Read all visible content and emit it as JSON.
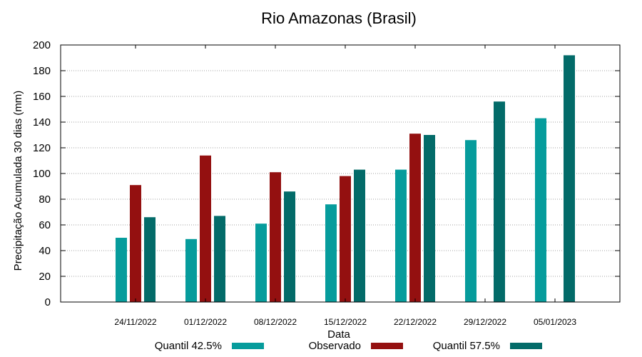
{
  "chart_data": {
    "type": "bar",
    "title": "Rio Amazonas (Brasil)",
    "xlabel": "Data",
    "ylabel": "Precipitação Acumulada 30 dias (mm)",
    "ylim": [
      0,
      200
    ],
    "yticks": [
      0,
      20,
      40,
      60,
      80,
      100,
      120,
      140,
      160,
      180,
      200
    ],
    "grid": true,
    "legend_position": "bottom",
    "categories": [
      "24/11/2022",
      "01/12/2022",
      "08/12/2022",
      "15/12/2022",
      "22/12/2022",
      "29/12/2022",
      "05/01/2023"
    ],
    "series": [
      {
        "name": "Quantil 42.5%",
        "color": "#069c9c",
        "values": [
          50,
          49,
          61,
          76,
          103,
          126,
          143
        ]
      },
      {
        "name": "Observado",
        "color": "#941010",
        "values": [
          91,
          114,
          101,
          98,
          131,
          null,
          null
        ]
      },
      {
        "name": "Quantil 57.5%",
        "color": "#036b69",
        "values": [
          66,
          67,
          86,
          103,
          130,
          156,
          192
        ]
      }
    ]
  }
}
